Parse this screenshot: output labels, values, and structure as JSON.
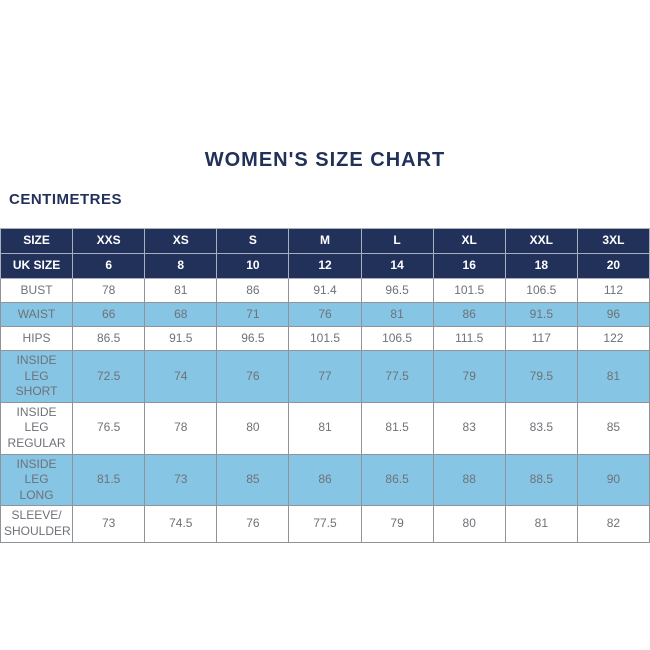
{
  "header": {
    "title": "WOMEN'S SIZE CHART",
    "unit_label": "CENTIMETRES"
  },
  "colors": {
    "navy": "#22315a",
    "row_blue": "#87c5e4",
    "border": "#8f949b",
    "header_divider": "#a9b0bd",
    "label_text": "#3f4347",
    "value_text": "#6e7277",
    "header_text": "#ffffff"
  },
  "chart_data": {
    "type": "table",
    "title": "WOMEN'S SIZE CHART",
    "unit": "CENTIMETRES",
    "columns": [
      "SIZE",
      "XXS",
      "XS",
      "S",
      "M",
      "L",
      "XL",
      "XXL",
      "3XL"
    ],
    "header_rows": [
      {
        "label": "SIZE",
        "values": [
          "XXS",
          "XS",
          "S",
          "M",
          "L",
          "XL",
          "XXL",
          "3XL"
        ]
      },
      {
        "label": "UK SIZE",
        "values": [
          "6",
          "8",
          "10",
          "12",
          "14",
          "16",
          "18",
          "20"
        ]
      }
    ],
    "rows": [
      {
        "label": "BUST",
        "values": [
          "78",
          "81",
          "86",
          "91.4",
          "96.5",
          "101.5",
          "106.5",
          "112"
        ],
        "shaded": false
      },
      {
        "label": "WAIST",
        "values": [
          "66",
          "68",
          "71",
          "76",
          "81",
          "86",
          "91.5",
          "96"
        ],
        "shaded": true
      },
      {
        "label": "HIPS",
        "values": [
          "86.5",
          "91.5",
          "96.5",
          "101.5",
          "106.5",
          "111.5",
          "117",
          "122"
        ],
        "shaded": false
      },
      {
        "label": "INSIDE LEG\nSHORT",
        "values": [
          "72.5",
          "74",
          "76",
          "77",
          "77.5",
          "79",
          "79.5",
          "81"
        ],
        "shaded": true
      },
      {
        "label": "INSIDE LEG\nREGULAR",
        "values": [
          "76.5",
          "78",
          "80",
          "81",
          "81.5",
          "83",
          "83.5",
          "85"
        ],
        "shaded": false
      },
      {
        "label": "INSIDE LEG\nLONG",
        "values": [
          "81.5",
          "73",
          "85",
          "86",
          "86.5",
          "88",
          "88.5",
          "90"
        ],
        "shaded": true
      },
      {
        "label": "SLEEVE/\nSHOULDER",
        "values": [
          "73",
          "74.5",
          "76",
          "77.5",
          "79",
          "80",
          "81",
          "82"
        ],
        "shaded": false
      }
    ]
  }
}
